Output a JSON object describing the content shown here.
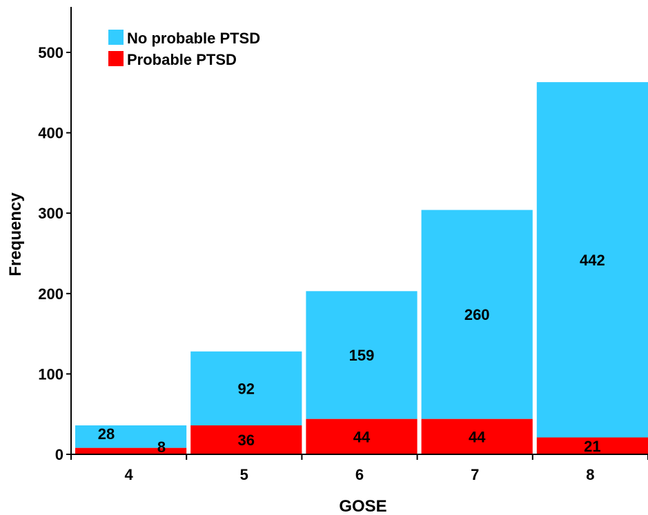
{
  "chart_data": {
    "type": "bar",
    "stacked": true,
    "xlabel": "GOSE",
    "ylabel": "Frequency",
    "categories": [
      "4",
      "5",
      "6",
      "7",
      "8"
    ],
    "ylim": [
      0,
      550
    ],
    "yticks": [
      0,
      100,
      200,
      300,
      400,
      500
    ],
    "grid": false,
    "legend_position": "top-left",
    "series": [
      {
        "name": "Probable PTSD",
        "color": "#ff0000",
        "values": [
          8,
          36,
          44,
          44,
          21
        ],
        "labels": [
          "8",
          "36",
          "44",
          "44",
          "21"
        ]
      },
      {
        "name": "No probable PTSD",
        "color": "#33ccff",
        "values": [
          28,
          92,
          159,
          260,
          442
        ],
        "labels": [
          "28",
          "92",
          "159",
          "260",
          "442"
        ]
      }
    ],
    "legend": [
      "No probable PTSD",
      "Probable PTSD"
    ]
  }
}
